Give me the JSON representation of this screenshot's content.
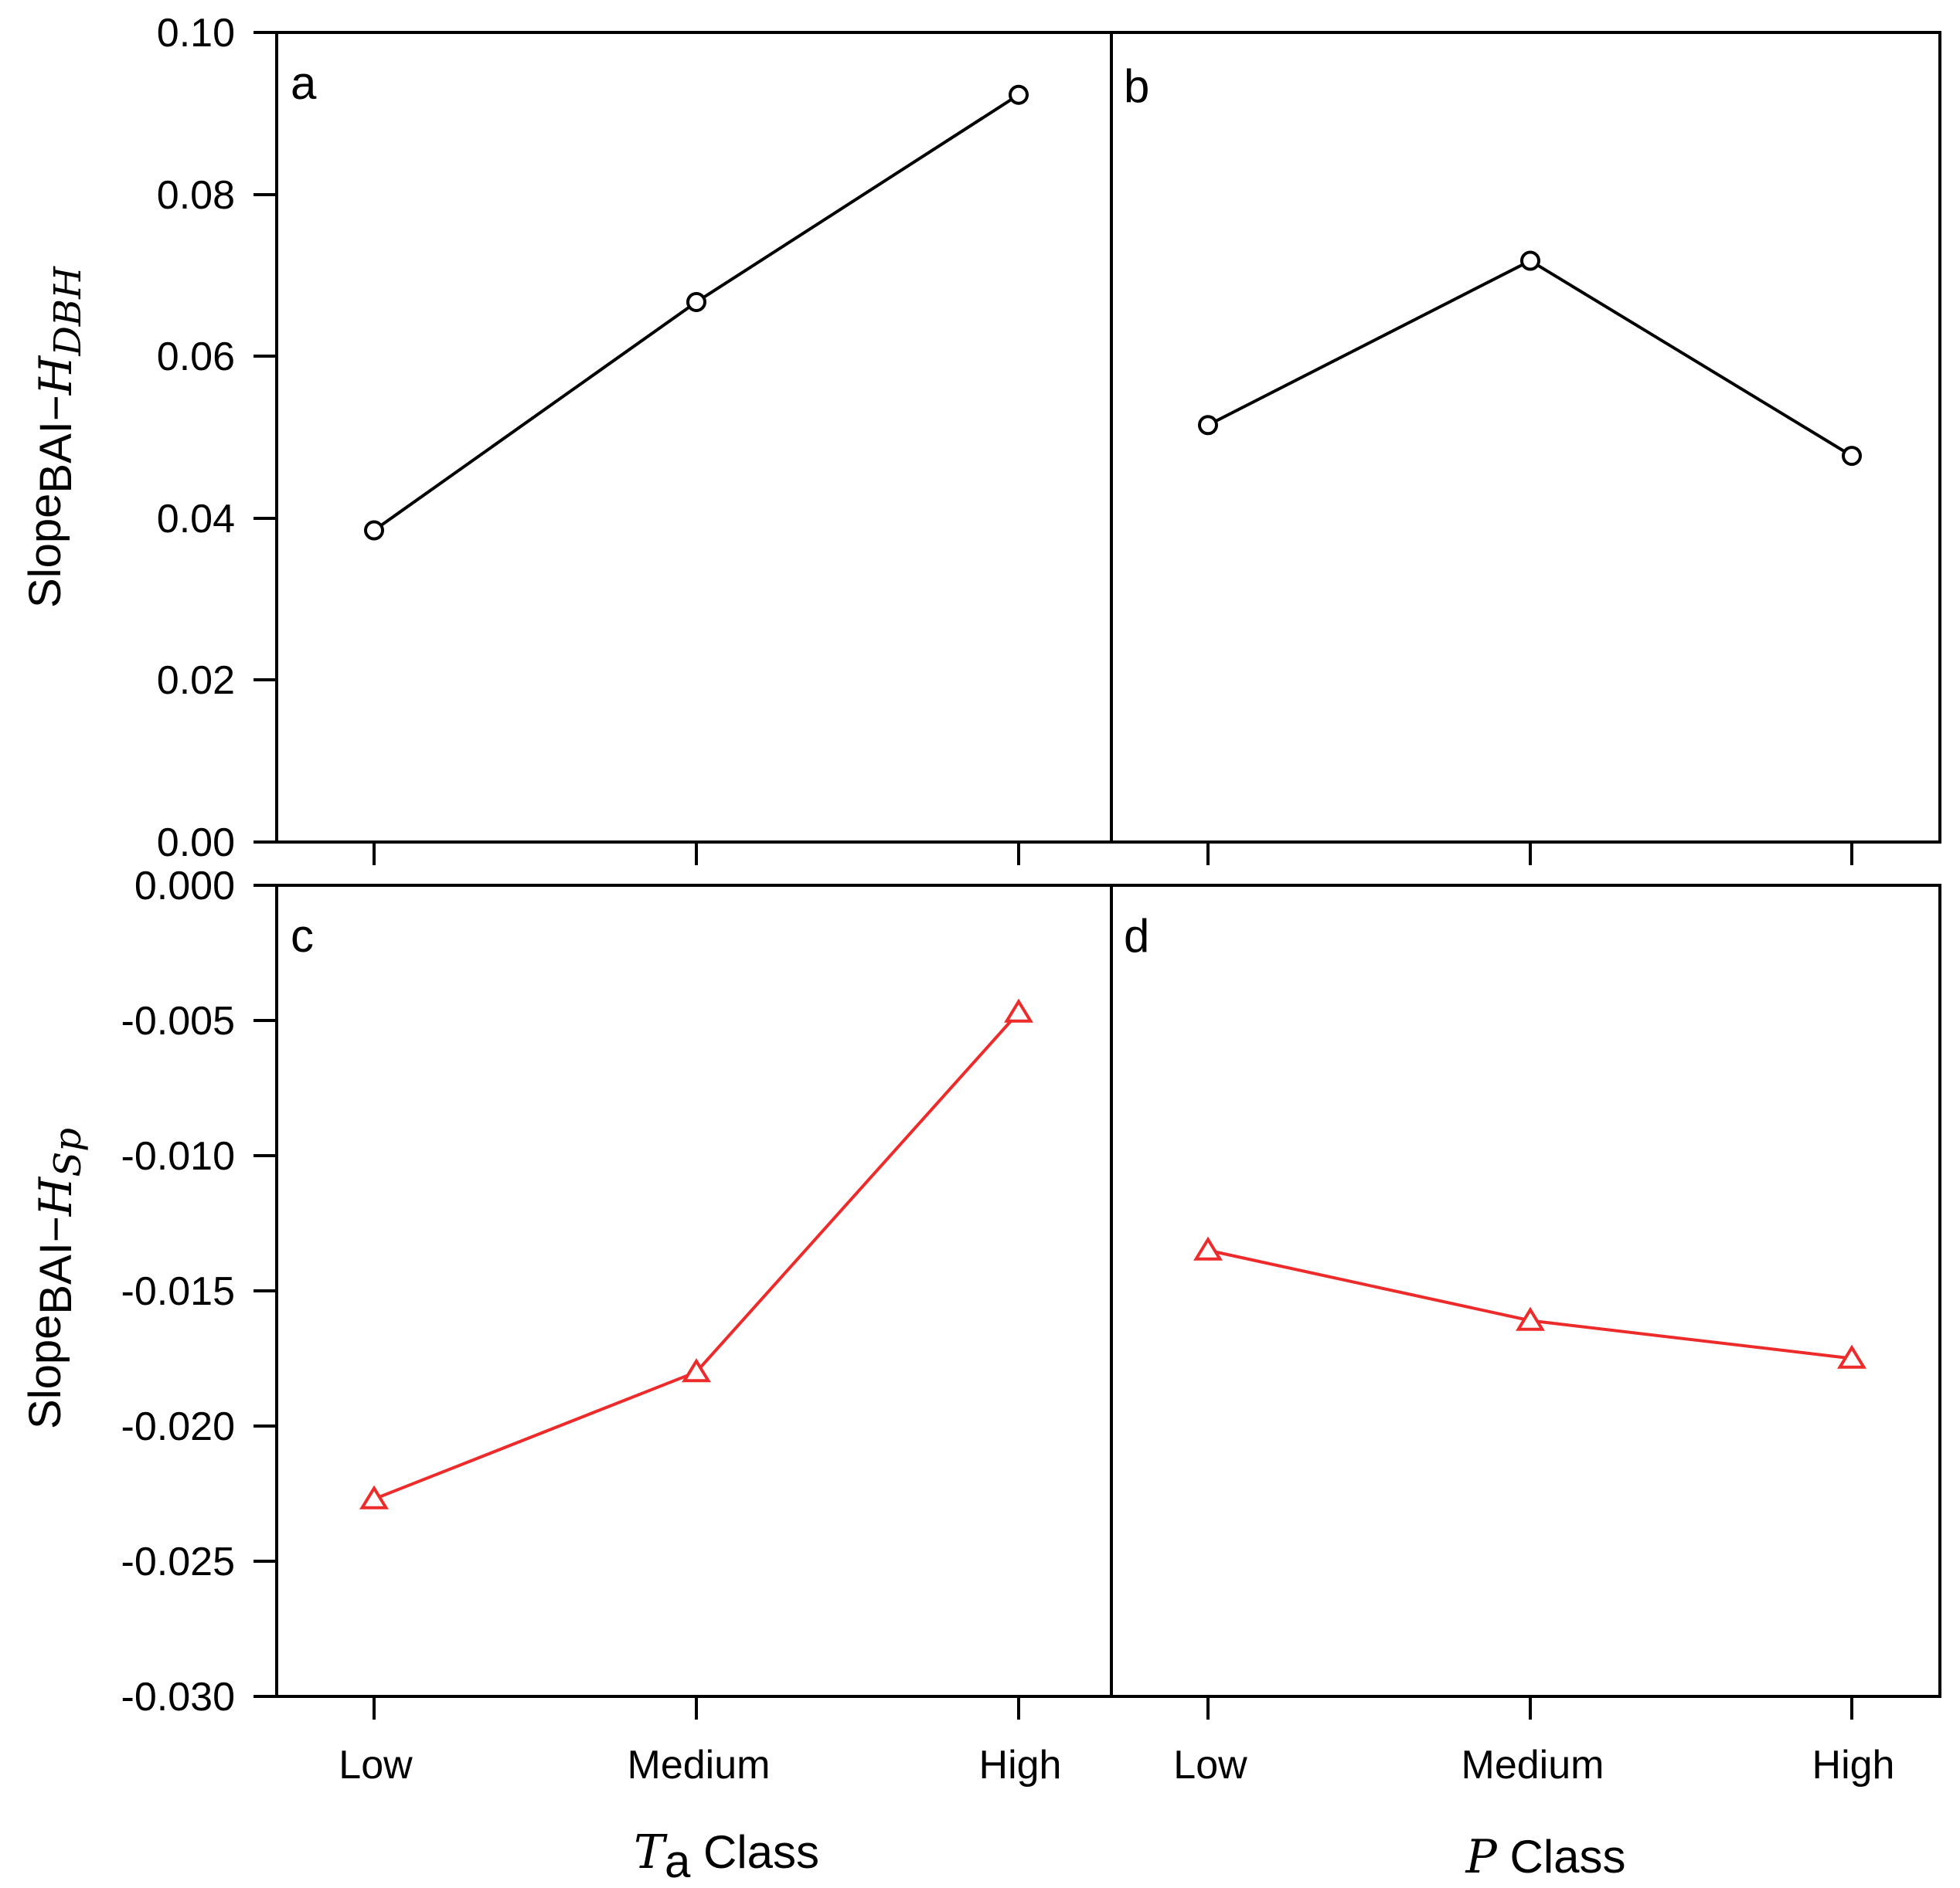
{
  "chart_data": [
    {
      "panel": "a",
      "type": "line",
      "categories": [
        "Low",
        "Medium",
        "High"
      ],
      "values": [
        0.0385,
        0.0667,
        0.0923
      ],
      "marker": "circle",
      "color": "#000000",
      "ylim": [
        0.0,
        0.1
      ],
      "yticks": [
        "0.00",
        "0.02",
        "0.04",
        "0.06",
        "0.08",
        "0.10"
      ],
      "ylabel": {
        "main": "Slope",
        "sub": "BAI−",
        "italic": "H",
        "italic_sub": "DBH"
      },
      "xlabel": ""
    },
    {
      "panel": "b",
      "type": "line",
      "categories": [
        "Low",
        "Medium",
        "High"
      ],
      "values": [
        0.0515,
        0.0718,
        0.0477
      ],
      "marker": "circle",
      "color": "#000000",
      "ylim": [
        0.0,
        0.1
      ],
      "xlabel": ""
    },
    {
      "panel": "c",
      "type": "line",
      "categories": [
        "Low",
        "Medium",
        "High"
      ],
      "values": [
        -0.0227,
        -0.018,
        -0.0047
      ],
      "marker": "triangle",
      "color": "#ee2b2b",
      "ylim": [
        -0.03,
        0.0
      ],
      "yticks": [
        "-0.030",
        "-0.025",
        "-0.020",
        "-0.015",
        "-0.010",
        "-0.005",
        "0.000"
      ],
      "ylabel": {
        "main": "Slope",
        "sub": "BAI−",
        "italic": "H",
        "italic_sub": "Sp"
      },
      "xticks": [
        "Low",
        "Medium",
        "High"
      ],
      "xlabel": {
        "italic": "T",
        "sub": "a",
        "rest": " Class"
      }
    },
    {
      "panel": "d",
      "type": "line",
      "categories": [
        "Low",
        "Medium",
        "High"
      ],
      "values": [
        -0.0135,
        -0.0161,
        -0.0175
      ],
      "marker": "triangle",
      "color": "#ee2b2b",
      "ylim": [
        -0.03,
        0.0
      ],
      "xticks": [
        "Low",
        "Medium",
        "High"
      ],
      "xlabel": {
        "italic": "P",
        "rest": " Class"
      }
    }
  ]
}
